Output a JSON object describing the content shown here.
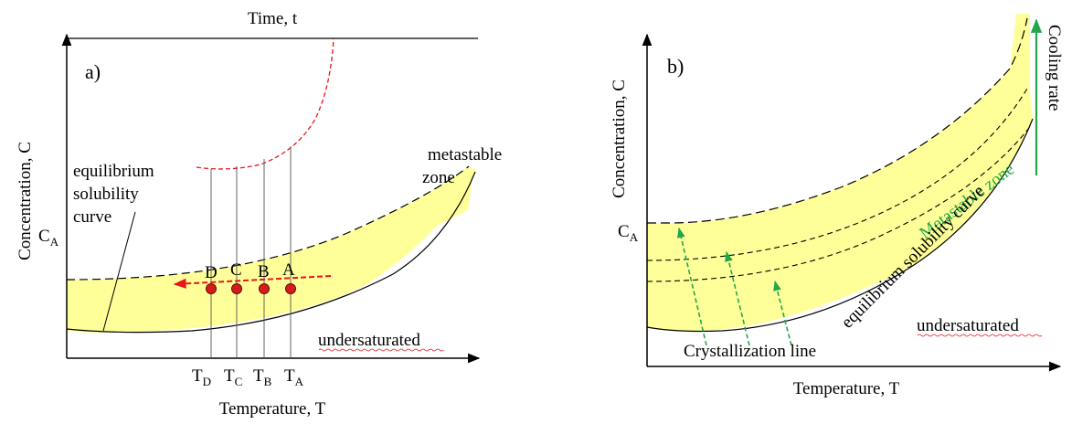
{
  "panel_a": {
    "label": "a)",
    "top_axis_label": "Time, t",
    "x_axis_label": "Temperature, T",
    "y_axis_label": "Concentration, C",
    "ca_label": "C",
    "ca_sub": "A",
    "equilibrium_label": [
      "equilibrium",
      "solubility",
      "curve"
    ],
    "metastable_label": [
      "metastable",
      "zone"
    ],
    "undersaturated_label": "undersaturated",
    "points": [
      "D",
      "C",
      "B",
      "A"
    ],
    "temps": [
      {
        "main": "T",
        "sub": "D"
      },
      {
        "main": "T",
        "sub": "C"
      },
      {
        "main": "T",
        "sub": "B"
      },
      {
        "main": "T",
        "sub": "A"
      }
    ]
  },
  "panel_b": {
    "label": "b)",
    "x_axis_label": "Temperature, T",
    "y_axis_label": "Concentration, C",
    "ca_label": "C",
    "ca_sub": "A",
    "metastable_label": "Metastable zone",
    "equilibrium_label": "equilibrium solubility curve",
    "undersaturated_label": "undersaturated",
    "crystallization_label": "Crystallization line",
    "cooling_label": "Cooling rate"
  },
  "colors": {
    "zone_fill": "#ffff99",
    "red": "#e8151b",
    "point_fill": "#d41c1c",
    "green": "#22a84a"
  }
}
